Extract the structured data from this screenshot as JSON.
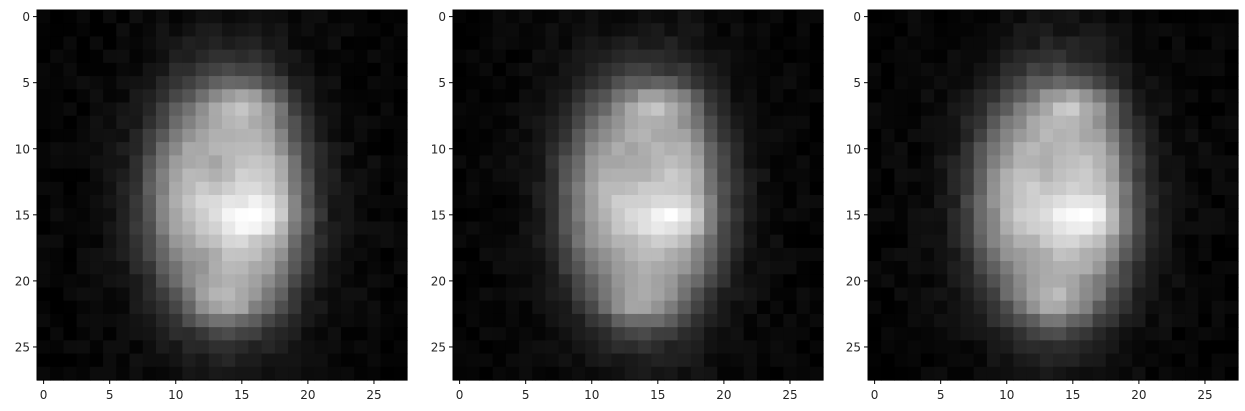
{
  "chart_data": [
    {
      "type": "heatmap",
      "title": "",
      "xlabel": "",
      "ylabel": "",
      "colormap": "gray",
      "grid": false,
      "shape": [
        28,
        28
      ],
      "xlim": [
        -0.5,
        27.5
      ],
      "ylim": [
        27.5,
        -0.5
      ],
      "xticks": [
        0,
        5,
        10,
        15,
        20,
        25
      ],
      "yticks": [
        0,
        5,
        10,
        15,
        20,
        25
      ],
      "xtick_labels": [
        "0",
        "5",
        "10",
        "15",
        "20",
        "25"
      ],
      "ytick_labels": [
        "0",
        "5",
        "10",
        "15",
        "20",
        "25"
      ],
      "variant": 0
    },
    {
      "type": "heatmap",
      "title": "",
      "xlabel": "",
      "ylabel": "",
      "colormap": "gray",
      "grid": false,
      "shape": [
        28,
        28
      ],
      "xlim": [
        -0.5,
        27.5
      ],
      "ylim": [
        27.5,
        -0.5
      ],
      "xticks": [
        0,
        5,
        10,
        15,
        20,
        25
      ],
      "yticks": [
        0,
        5,
        10,
        15,
        20,
        25
      ],
      "xtick_labels": [
        "0",
        "5",
        "10",
        "15",
        "20",
        "25"
      ],
      "ytick_labels": [
        "0",
        "5",
        "10",
        "15",
        "20",
        "25"
      ],
      "variant": 1
    },
    {
      "type": "heatmap",
      "title": "",
      "xlabel": "",
      "ylabel": "",
      "colormap": "gray",
      "grid": false,
      "shape": [
        28,
        28
      ],
      "xlim": [
        -0.5,
        27.5
      ],
      "ylim": [
        27.5,
        -0.5
      ],
      "xticks": [
        0,
        5,
        10,
        15,
        20,
        25
      ],
      "yticks": [
        0,
        5,
        10,
        15,
        20,
        25
      ],
      "xtick_labels": [
        "0",
        "5",
        "10",
        "15",
        "20",
        "25"
      ],
      "ytick_labels": [
        "0",
        "5",
        "10",
        "15",
        "20",
        "25"
      ],
      "variant": 2
    }
  ]
}
